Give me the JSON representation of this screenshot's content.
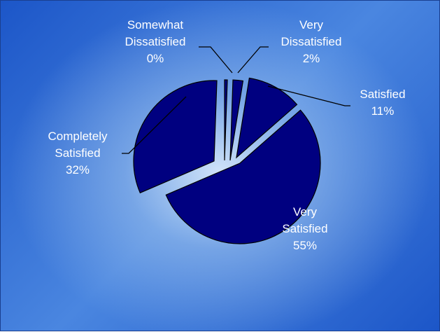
{
  "chart_data": {
    "type": "pie",
    "exploded": true,
    "slice_color": "#000080",
    "background_colors": [
      "#1c56c8",
      "#d7e8fa"
    ],
    "label_color": "#ffffff",
    "slices": [
      {
        "key": "very_satisfied",
        "label_lines": [
          "Very",
          "Satisfied"
        ],
        "percent_label": "55%",
        "value": 55
      },
      {
        "key": "completely_satisfied",
        "label_lines": [
          "Completely",
          "Satisfied"
        ],
        "percent_label": "32%",
        "value": 32
      },
      {
        "key": "somewhat_dissatisfied",
        "label_lines": [
          "Somewhat",
          "Dissatisfied"
        ],
        "percent_label": "0%",
        "value": 0
      },
      {
        "key": "very_dissatisfied",
        "label_lines": [
          "Very",
          "Dissatisfied"
        ],
        "percent_label": "2%",
        "value": 2
      },
      {
        "key": "satisfied",
        "label_lines": [
          "Satisfied"
        ],
        "percent_label": "11%",
        "value": 11
      }
    ]
  }
}
